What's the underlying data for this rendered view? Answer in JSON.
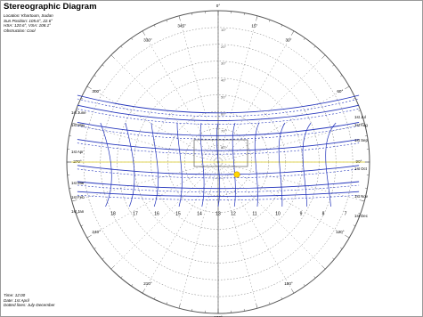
{
  "header": {
    "title": "Stereographic Diagram",
    "location": "Location: Khartoum, Sudan",
    "sun_position": "Sun Position: 105.6°, 22.6°",
    "hsa_vsa": "HSA: 120.6°, VSA: 108.1°",
    "obstruction": "Obstruction: Cool"
  },
  "footer": {
    "time": "Time: 12:00",
    "date": "Date: 1st April",
    "dotted_lines": "Dotted lines: July-December"
  },
  "diagram": {
    "azimuth_labels": [
      {
        "text": "0°",
        "angle": 0
      },
      {
        "text": "15°",
        "angle": 15
      },
      {
        "text": "30°",
        "angle": 30
      },
      {
        "text": "60°",
        "angle": 60
      },
      {
        "text": "90°",
        "angle": 90
      },
      {
        "text": "120°",
        "angle": 120
      },
      {
        "text": "150°",
        "angle": 150
      },
      {
        "text": "180°",
        "angle": 180
      },
      {
        "text": "210°",
        "angle": 210
      },
      {
        "text": "240°",
        "angle": 240
      },
      {
        "text": "270°",
        "angle": 270
      },
      {
        "text": "300°",
        "angle": 300
      },
      {
        "text": "330°",
        "angle": 330
      },
      {
        "text": "345°",
        "angle": 345
      }
    ],
    "altitude_labels": [
      "10°",
      "20°",
      "30°",
      "40°",
      "50°",
      "60°",
      "70°",
      "80°"
    ],
    "date_labels_left": [
      "1st June",
      "1st May",
      "1st Apr",
      "1st Mar",
      "1st Feb",
      "1st Jan"
    ],
    "date_labels_right": [
      "1st Jul",
      "1st Aug",
      "1st Sep",
      "1st Oct",
      "1st Nov",
      "1st Dec"
    ],
    "hour_labels": [
      "18",
      "17",
      "16",
      "15",
      "14",
      "13",
      "12",
      "11",
      "10",
      "9",
      "8",
      "7"
    ],
    "colors": {
      "sunpath": "#2233bb",
      "sun_position": "#ffd700",
      "current_day_line": "#f2e13a",
      "grid": "#707070",
      "circle": "#555555"
    }
  }
}
